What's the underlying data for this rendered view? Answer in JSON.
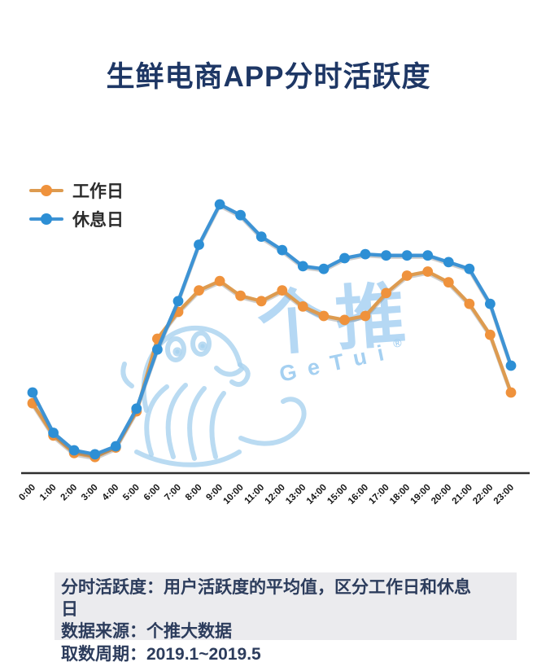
{
  "title": "生鲜电商APP分时活跃度",
  "watermark": {
    "brand_cn": "个推",
    "brand_en": "GeTui",
    "registered": "®",
    "color": "#a9d2ef"
  },
  "chart_data": {
    "type": "line",
    "title": "生鲜电商APP分时活跃度",
    "x_labels": [
      "0:00",
      "1:00",
      "2:00",
      "3:00",
      "4:00",
      "5:00",
      "6:00",
      "7:00",
      "8:00",
      "9:00",
      "10:00",
      "11:00",
      "12:00",
      "13:00",
      "14:00",
      "15:00",
      "16:00",
      "17:00",
      "18:00",
      "19:00",
      "20:00",
      "21:00",
      "22:00",
      "23:00"
    ],
    "xlabel": "",
    "ylabel": "",
    "ylim": [
      0,
      105
    ],
    "grid": false,
    "y_axis_shown": false,
    "legend_position": "top-left",
    "axis_color": "#2e2e2e",
    "series": [
      {
        "name": "工作日",
        "color": "#ef923c",
        "line_color": "#dd9b50",
        "values": [
          26,
          14,
          7.5,
          6,
          9.5,
          23,
          50,
          60,
          68,
          71.5,
          66,
          64,
          68,
          62,
          58.5,
          57,
          58.5,
          67,
          73.5,
          75,
          71,
          63,
          51.5,
          30
        ]
      },
      {
        "name": "休息日",
        "color": "#2d8fd5",
        "line_color": "#3e93d4",
        "values": [
          30,
          15,
          8.5,
          7,
          10,
          24,
          46,
          64,
          85,
          100,
          96,
          88,
          83,
          77,
          76,
          80,
          81.5,
          81,
          81,
          81,
          78.5,
          76,
          63,
          40
        ]
      }
    ]
  },
  "footer": {
    "definition_line1": "分时活跃度：用户活跃度的平均值，区分工作日和休息",
    "definition_line2": "日",
    "source": "数据来源：个推大数据",
    "period": "取数周期：2019.1~2019.5"
  }
}
